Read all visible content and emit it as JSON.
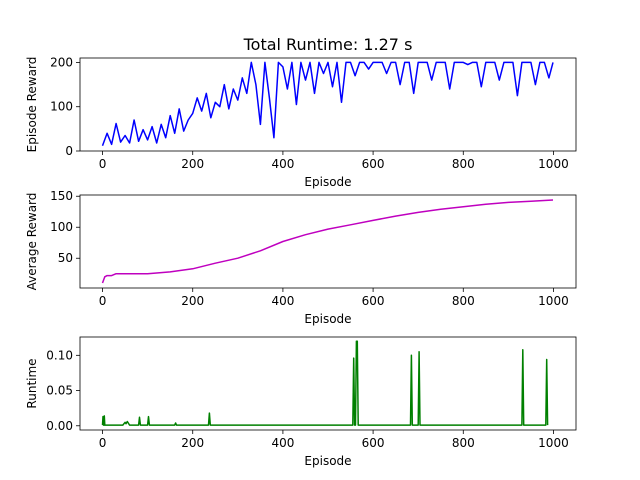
{
  "figure": {
    "title": "Total Runtime: 1.27 s"
  },
  "chart_data": [
    {
      "type": "line",
      "title": "Total Runtime: 1.27 s",
      "xlabel": "Episode",
      "ylabel": "Episode Reward",
      "xlim": [
        -50,
        1050
      ],
      "ylim": [
        0,
        210
      ],
      "xticks": [
        0,
        200,
        400,
        600,
        800,
        1000
      ],
      "yticks": [
        0,
        100,
        200
      ],
      "grid": false,
      "color": "#0000ff",
      "x": [
        0,
        10,
        20,
        30,
        40,
        50,
        60,
        70,
        80,
        90,
        100,
        110,
        120,
        130,
        140,
        150,
        160,
        170,
        180,
        190,
        200,
        210,
        220,
        230,
        240,
        250,
        260,
        270,
        280,
        290,
        300,
        310,
        320,
        330,
        340,
        350,
        360,
        370,
        380,
        390,
        400,
        410,
        420,
        430,
        440,
        450,
        460,
        470,
        480,
        490,
        500,
        510,
        520,
        530,
        540,
        550,
        560,
        570,
        580,
        590,
        600,
        610,
        620,
        630,
        640,
        650,
        660,
        670,
        680,
        690,
        700,
        710,
        720,
        730,
        740,
        750,
        760,
        770,
        780,
        790,
        800,
        810,
        820,
        830,
        840,
        850,
        860,
        870,
        880,
        890,
        900,
        910,
        920,
        930,
        940,
        950,
        960,
        970,
        980,
        990,
        999
      ],
      "values": [
        12,
        40,
        15,
        62,
        20,
        35,
        18,
        70,
        22,
        48,
        25,
        55,
        18,
        60,
        30,
        80,
        40,
        95,
        45,
        70,
        85,
        120,
        90,
        130,
        75,
        110,
        100,
        150,
        95,
        140,
        115,
        165,
        130,
        200,
        150,
        60,
        200,
        120,
        30,
        200,
        190,
        140,
        200,
        105,
        200,
        160,
        200,
        130,
        200,
        175,
        200,
        145,
        200,
        110,
        200,
        200,
        170,
        200,
        200,
        185,
        200,
        200,
        200,
        175,
        200,
        200,
        150,
        200,
        200,
        130,
        200,
        200,
        200,
        160,
        200,
        200,
        200,
        140,
        200,
        200,
        200,
        195,
        200,
        200,
        145,
        200,
        200,
        200,
        160,
        200,
        200,
        200,
        125,
        200,
        200,
        200,
        150,
        200,
        200,
        165,
        200
      ]
    },
    {
      "type": "line",
      "title": "",
      "xlabel": "Episode",
      "ylabel": "Average Reward",
      "xlim": [
        -50,
        1050
      ],
      "ylim": [
        2,
        152
      ],
      "xticks": [
        0,
        200,
        400,
        600,
        800,
        1000
      ],
      "yticks": [
        50,
        100,
        150
      ],
      "grid": false,
      "color": "#bf00bf",
      "x": [
        0,
        5,
        10,
        20,
        30,
        50,
        100,
        150,
        200,
        250,
        300,
        350,
        400,
        450,
        500,
        550,
        600,
        650,
        700,
        750,
        800,
        850,
        900,
        950,
        999
      ],
      "values": [
        10,
        20,
        22,
        22,
        25,
        25,
        25,
        28,
        33,
        42,
        50,
        62,
        77,
        88,
        97,
        104,
        111,
        118,
        124,
        129,
        133,
        137,
        140,
        142,
        144
      ]
    },
    {
      "type": "line",
      "title": "",
      "xlabel": "Episode",
      "ylabel": "Runtime",
      "xlim": [
        -50,
        1050
      ],
      "ylim": [
        -0.006,
        0.126
      ],
      "xticks": [
        0,
        200,
        400,
        600,
        800,
        1000
      ],
      "yticks": [
        0.0,
        0.05,
        0.1
      ],
      "ytick_labels": [
        "0.00",
        "0.05",
        "0.10"
      ],
      "grid": false,
      "color": "#008000",
      "x": [
        0,
        1,
        2,
        3,
        4,
        5,
        6,
        7,
        8,
        9,
        10,
        45,
        50,
        52,
        55,
        60,
        80,
        82,
        84,
        100,
        102,
        104,
        160,
        162,
        164,
        235,
        237,
        239,
        555,
        557,
        559,
        561,
        563,
        565,
        567,
        569,
        571,
        683,
        685,
        687,
        700,
        702,
        704,
        930,
        932,
        934,
        981,
        983,
        985,
        987
      ],
      "values": [
        0.001,
        0.013,
        0.001,
        0.001,
        0.014,
        0.001,
        0.001,
        0.001,
        0.001,
        0.001,
        0.001,
        0.001,
        0.005,
        0.003,
        0.006,
        0.001,
        0.001,
        0.012,
        0.001,
        0.001,
        0.013,
        0.001,
        0.001,
        0.004,
        0.001,
        0.001,
        0.018,
        0.001,
        0.001,
        0.096,
        0.001,
        0.001,
        0.12,
        0.12,
        0.001,
        0.001,
        0.001,
        0.001,
        0.1,
        0.001,
        0.001,
        0.105,
        0.001,
        0.001,
        0.108,
        0.001,
        0.001,
        0.001,
        0.094,
        0.001
      ]
    }
  ]
}
